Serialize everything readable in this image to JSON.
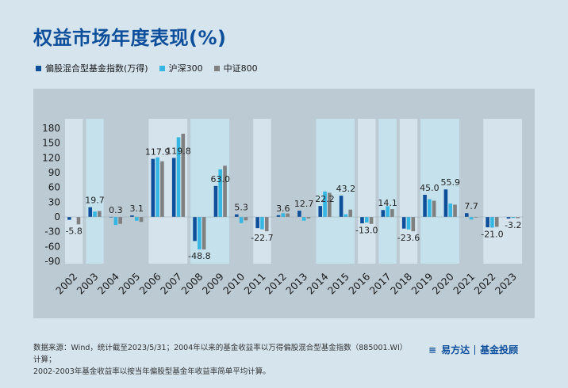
{
  "title": "权益市场年度表现(%)",
  "legend": [
    {
      "label": "偏股混合型基金指数(万得)",
      "color": "#0e4f9c"
    },
    {
      "label": "沪深300",
      "color": "#35b6e3"
    },
    {
      "label": "中证800",
      "color": "#808080"
    }
  ],
  "footer": {
    "line1": "数据来源：Wind，统计截至2023/5/31；2004年以来的基金收益率以万得偏股混合型基金指数（885001.WI）计算；",
    "line2": "2002-2003年基金收益率以按当年偏股型基金年收益率简单平均计算。"
  },
  "brand": {
    "mark": "≡",
    "name": "易方达",
    "sub": "基金投顾"
  },
  "chart_data": {
    "type": "bar",
    "categories": [
      "2002",
      "2003",
      "2004",
      "2005",
      "2006",
      "2007",
      "2008",
      "2009",
      "2010",
      "2011",
      "2012",
      "2013",
      "2014",
      "2015",
      "2016",
      "2017",
      "2018",
      "2019",
      "2020",
      "2021",
      "2022",
      "2023"
    ],
    "series": [
      {
        "name": "偏股混合型基金指数(万得)",
        "values": [
          -5.8,
          19.7,
          0.3,
          3.1,
          117.9,
          119.8,
          -48.8,
          63.0,
          5.3,
          -22.7,
          3.6,
          12.7,
          22.2,
          43.2,
          -13.0,
          14.1,
          -23.6,
          45.0,
          55.9,
          7.7,
          -21.0,
          -3.2
        ]
      },
      {
        "name": "沪深300",
        "values": [
          null,
          11,
          -16.3,
          -7.7,
          121,
          161.6,
          -65.9,
          96.7,
          -12.5,
          -25.0,
          7.6,
          -7.6,
          51.7,
          5.6,
          -11.3,
          21.8,
          -25.3,
          36.1,
          27.2,
          -5.2,
          -21.6,
          -2.0
        ]
      },
      {
        "name": "中证800",
        "values": [
          -15,
          12,
          -14,
          -10,
          113,
          169,
          -66,
          104,
          -7,
          -29,
          7,
          -3,
          49,
          15,
          -14,
          16,
          -29,
          33,
          25,
          -1,
          -20,
          -2.5
        ]
      }
    ],
    "labels": [
      "-5.8",
      "19.7",
      "0.3",
      "3.1",
      "117.9",
      "119.8",
      "-48.8",
      "63.0",
      "5.3",
      "-22.7",
      "3.6",
      "12.7",
      "22.2",
      "43.2",
      "-13.0",
      "14.1",
      "-23.6",
      "45.0",
      "55.9",
      "7.7",
      "-21.0",
      "-3.2"
    ],
    "yticks": [
      180,
      150,
      120,
      90,
      60,
      30,
      0,
      -30,
      -60,
      -90
    ],
    "ylim": [
      -90,
      180
    ],
    "shaded_ranges": [
      {
        "from": "2002",
        "to": "2002",
        "color": "#d5e3ec"
      },
      {
        "from": "2003",
        "to": "2003",
        "color": "#c5e2ec"
      },
      {
        "from": "2006",
        "to": "2007",
        "color": "#d5e3ec"
      },
      {
        "from": "2008",
        "to": "2009",
        "color": "#c5e2ec"
      },
      {
        "from": "2011",
        "to": "2011",
        "color": "#d5e3ec"
      },
      {
        "from": "2014",
        "to": "2015",
        "color": "#c5e2ec"
      },
      {
        "from": "2016",
        "to": "2016",
        "color": "#d5e3ec"
      },
      {
        "from": "2017",
        "to": "2017",
        "color": "#c5e2ec"
      },
      {
        "from": "2018",
        "to": "2018",
        "color": "#d5e3ec"
      },
      {
        "from": "2019",
        "to": "2020",
        "color": "#c5e2ec"
      },
      {
        "from": "2022",
        "to": "2023",
        "color": "#d5e3ec"
      }
    ]
  }
}
